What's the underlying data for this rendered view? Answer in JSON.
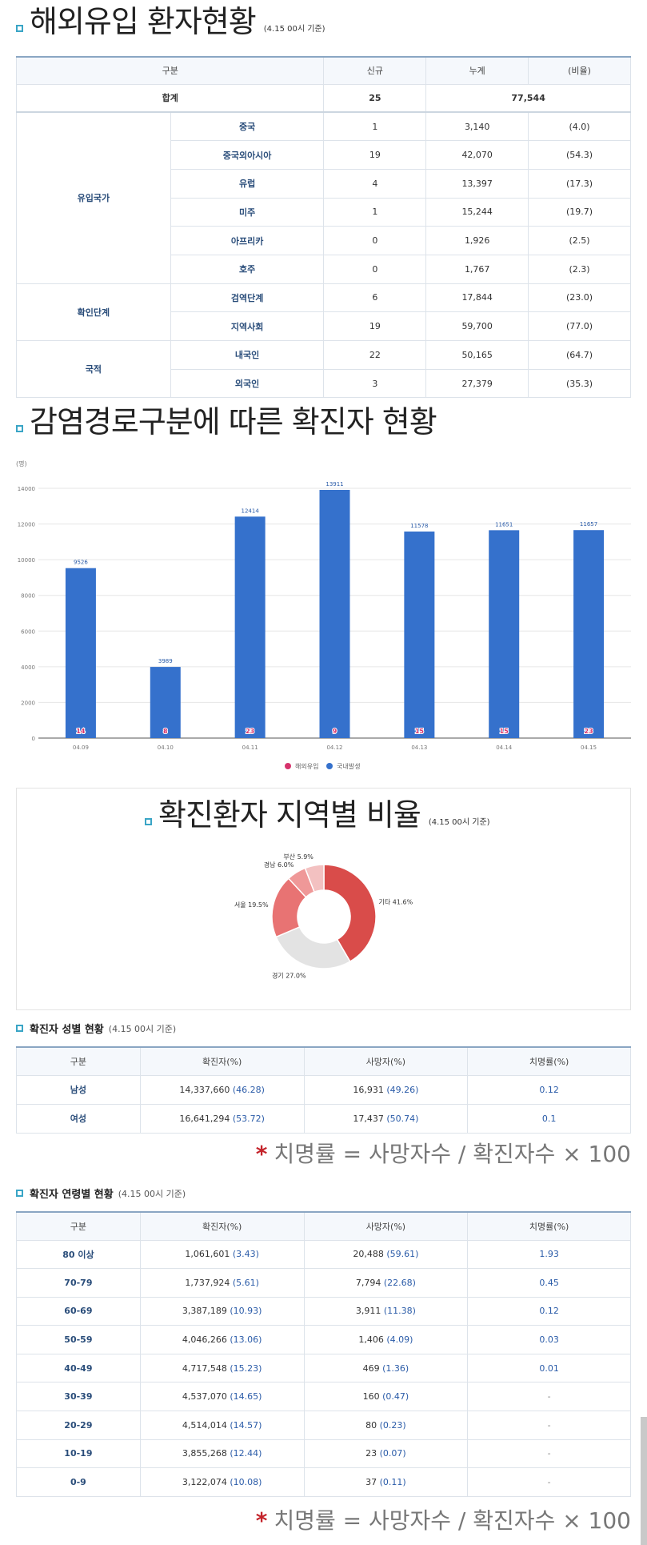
{
  "import": {
    "title": "해외유입 환자현황",
    "stamp": "(4.15 00시 기준)",
    "headers": [
      "구분",
      "신규",
      "누계",
      "(비율)"
    ],
    "total": {
      "label": "합계",
      "new": "25",
      "cum": "77,544"
    },
    "groups": [
      {
        "label": "유입국가",
        "rows": [
          {
            "name": "중국",
            "new": "1",
            "cum": "3,140",
            "ratio": "(4.0)"
          },
          {
            "name": "중국외아시아",
            "new": "19",
            "cum": "42,070",
            "ratio": "(54.3)"
          },
          {
            "name": "유럽",
            "new": "4",
            "cum": "13,397",
            "ratio": "(17.3)"
          },
          {
            "name": "미주",
            "new": "1",
            "cum": "15,244",
            "ratio": "(19.7)"
          },
          {
            "name": "아프리카",
            "new": "0",
            "cum": "1,926",
            "ratio": "(2.5)"
          },
          {
            "name": "호주",
            "new": "0",
            "cum": "1,767",
            "ratio": "(2.3)"
          }
        ]
      },
      {
        "label": "확인단계",
        "rows": [
          {
            "name": "검역단계",
            "new": "6",
            "cum": "17,844",
            "ratio": "(23.0)"
          },
          {
            "name": "지역사회",
            "new": "19",
            "cum": "59,700",
            "ratio": "(77.0)"
          }
        ]
      },
      {
        "label": "국적",
        "rows": [
          {
            "name": "내국인",
            "new": "22",
            "cum": "50,165",
            "ratio": "(64.7)"
          },
          {
            "name": "외국인",
            "new": "3",
            "cum": "27,379",
            "ratio": "(35.3)"
          }
        ]
      }
    ]
  },
  "route": {
    "title": "감염경로구분에 따른 확진자 현황",
    "unit": "(명)",
    "legend": [
      "해외유입",
      "국내발생"
    ]
  },
  "region": {
    "title": "확진환자 지역별 비율",
    "stamp": "(4.15 00시 기준)"
  },
  "gender": {
    "title": "확진자 성별 현황",
    "stamp": "(4.15 00시 기준)",
    "headers": [
      "구분",
      "확진자(%)",
      "사망자(%)",
      "치명률(%)"
    ],
    "rows": [
      {
        "label": "남성",
        "conf": "14,337,660",
        "conf_pct": "(46.28)",
        "death": "16,931",
        "death_pct": "(49.26)",
        "fatality": "0.12"
      },
      {
        "label": "여성",
        "conf": "16,641,294",
        "conf_pct": "(53.72)",
        "death": "17,437",
        "death_pct": "(50.74)",
        "fatality": "0.1"
      }
    ]
  },
  "formula": "치명률 = 사망자수 / 확진자수 × 100",
  "formula_star": "*",
  "age": {
    "title": "확진자 연령별 현황",
    "stamp": "(4.15 00시 기준)",
    "headers": [
      "구분",
      "확진자(%)",
      "사망자(%)",
      "치명률(%)"
    ],
    "rows": [
      {
        "label": "80 이상",
        "conf": "1,061,601",
        "conf_pct": "(3.43)",
        "death": "20,488",
        "death_pct": "(59.61)",
        "fatality": "1.93"
      },
      {
        "label": "70-79",
        "conf": "1,737,924",
        "conf_pct": "(5.61)",
        "death": "7,794",
        "death_pct": "(22.68)",
        "fatality": "0.45"
      },
      {
        "label": "60-69",
        "conf": "3,387,189",
        "conf_pct": "(10.93)",
        "death": "3,911",
        "death_pct": "(11.38)",
        "fatality": "0.12"
      },
      {
        "label": "50-59",
        "conf": "4,046,266",
        "conf_pct": "(13.06)",
        "death": "1,406",
        "death_pct": "(4.09)",
        "fatality": "0.03"
      },
      {
        "label": "40-49",
        "conf": "4,717,548",
        "conf_pct": "(15.23)",
        "death": "469",
        "death_pct": "(1.36)",
        "fatality": "0.01"
      },
      {
        "label": "30-39",
        "conf": "4,537,070",
        "conf_pct": "(14.65)",
        "death": "160",
        "death_pct": "(0.47)",
        "fatality": "-"
      },
      {
        "label": "20-29",
        "conf": "4,514,014",
        "conf_pct": "(14.57)",
        "death": "80",
        "death_pct": "(0.23)",
        "fatality": "-"
      },
      {
        "label": "10-19",
        "conf": "3,855,268",
        "conf_pct": "(12.44)",
        "death": "23",
        "death_pct": "(0.07)",
        "fatality": "-"
      },
      {
        "label": "0-9",
        "conf": "3,122,074",
        "conf_pct": "(10.08)",
        "death": "37",
        "death_pct": "(0.11)",
        "fatality": "-"
      }
    ]
  },
  "chart_data": [
    {
      "type": "bar",
      "categories": [
        "04.09",
        "04.10",
        "04.11",
        "04.12",
        "04.13",
        "04.14",
        "04.15"
      ],
      "series": [
        {
          "name": "국내발생",
          "values": [
            9526,
            3989,
            12414,
            13911,
            11578,
            11651,
            11657
          ],
          "color": "#3571cc"
        },
        {
          "name": "해외유입",
          "values": [
            14,
            8,
            23,
            9,
            15,
            15,
            23
          ],
          "color": "#d6336c"
        }
      ],
      "ylabel": "(명)",
      "ylim": [
        0,
        14000
      ],
      "yticks": [
        "0",
        "2000",
        "4000",
        "6000",
        "8000",
        "10000",
        "12000",
        "14000"
      ],
      "grid": true,
      "legend": "bottom"
    },
    {
      "type": "pie",
      "labels": [
        "기타",
        "경기",
        "서울",
        "경남",
        "부산"
      ],
      "label_text": [
        "기타 41.6%",
        "경기 27.0%",
        "서울 19.5%",
        "경남 6.0%",
        "부산 5.9%"
      ],
      "values": [
        41.6,
        27.0,
        19.5,
        6.0,
        5.9
      ],
      "colors": [
        "#d94c4a",
        "#e3e3e3",
        "#e87373",
        "#ef9898",
        "#f3c1c1"
      ]
    }
  ]
}
